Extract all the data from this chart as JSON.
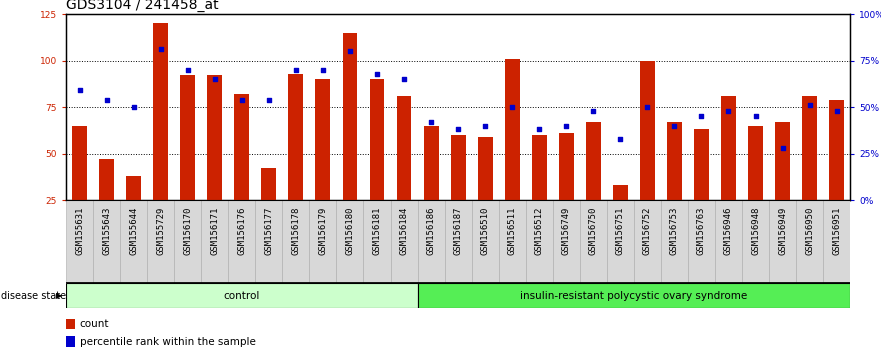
{
  "title": "GDS3104 / 241458_at",
  "samples": [
    "GSM155631",
    "GSM155643",
    "GSM155644",
    "GSM155729",
    "GSM156170",
    "GSM156171",
    "GSM156176",
    "GSM156177",
    "GSM156178",
    "GSM156179",
    "GSM156180",
    "GSM156181",
    "GSM156184",
    "GSM156186",
    "GSM156187",
    "GSM156510",
    "GSM156511",
    "GSM156512",
    "GSM156749",
    "GSM156750",
    "GSM156751",
    "GSM156752",
    "GSM156753",
    "GSM156763",
    "GSM156946",
    "GSM156948",
    "GSM156949",
    "GSM156950",
    "GSM156951"
  ],
  "counts": [
    65,
    47,
    38,
    120,
    92,
    92,
    82,
    42,
    93,
    90,
    115,
    90,
    81,
    65,
    60,
    59,
    101,
    60,
    61,
    67,
    33,
    100,
    67,
    63,
    81,
    65,
    67,
    81,
    79
  ],
  "percentile_ranks": [
    59,
    54,
    50,
    81,
    70,
    65,
    54,
    54,
    70,
    70,
    80,
    68,
    65,
    42,
    38,
    40,
    50,
    38,
    40,
    48,
    33,
    50,
    40,
    45,
    48,
    45,
    28,
    51,
    48
  ],
  "group_labels": [
    "control",
    "insulin-resistant polycystic ovary syndrome"
  ],
  "group_sizes": [
    13,
    16
  ],
  "group_color_1": "#ccffcc",
  "group_color_2": "#55ee55",
  "bar_color": "#cc2200",
  "dot_color": "#0000cc",
  "left_ylim": [
    25,
    125
  ],
  "right_ylim": [
    0,
    100
  ],
  "left_yticks": [
    25,
    50,
    75,
    100,
    125
  ],
  "right_yticks": [
    0,
    25,
    50,
    75,
    100
  ],
  "right_yticklabels": [
    "0%",
    "25%",
    "50%",
    "75%",
    "100%"
  ],
  "dotted_lines": [
    50,
    75,
    100
  ],
  "bar_width": 0.55,
  "title_fontsize": 10,
  "tick_fontsize": 6.5,
  "label_fontsize": 7.5,
  "xtick_fontsize": 6.5,
  "cell_bg": "#d8d8d8",
  "cell_border": "#aaaaaa"
}
